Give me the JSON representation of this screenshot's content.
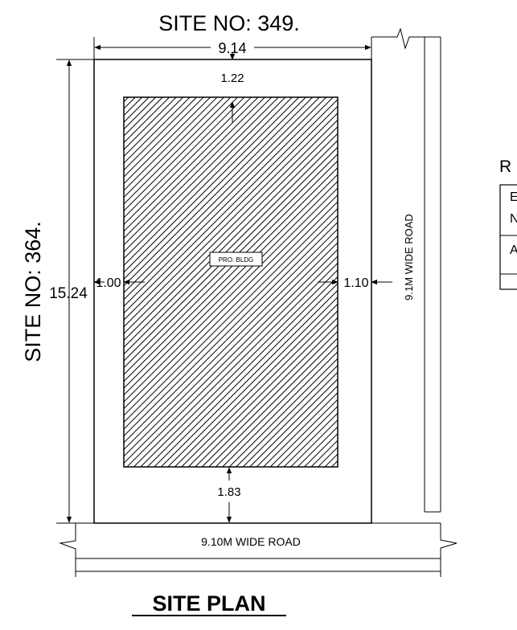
{
  "drawing": {
    "top_site_label": "SITE NO: 349.",
    "left_site_label": "SITE NO: 364.",
    "title": "SITE PLAN",
    "building_label": "PRO. BLDG"
  },
  "dimensions": {
    "plot_width": "9.14",
    "plot_length": "15.24",
    "setback_front_top": "1.22",
    "setback_rear_bottom": "1.83",
    "setback_left": "1.00",
    "setback_right": "1.10"
  },
  "roads": {
    "south_road": "9.10M WIDE ROAD",
    "east_road": "9.1M WIDE ROAD"
  },
  "side_table": {
    "heading_fragment": "R",
    "cells": [
      "E",
      "N",
      "A",
      ""
    ]
  }
}
